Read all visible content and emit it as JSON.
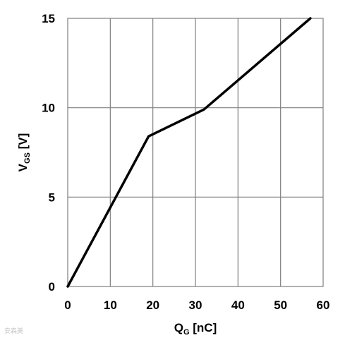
{
  "chart_data": {
    "type": "line",
    "xlabel": {
      "main": "Q",
      "sub": "G",
      "unit": " [nC]"
    },
    "ylabel": {
      "main": "V",
      "sub": "GS",
      "unit": " [V]"
    },
    "xlim": [
      0,
      60
    ],
    "ylim": [
      0,
      15
    ],
    "xticks": [
      0,
      10,
      20,
      30,
      40,
      50,
      60
    ],
    "yticks": [
      0,
      5,
      10,
      15
    ],
    "x_tick_labels": [
      "0",
      "10",
      "20",
      "30",
      "40",
      "50",
      "60"
    ],
    "y_tick_labels": [
      "0",
      "5",
      "10",
      "15"
    ],
    "grid": true,
    "series": [
      {
        "x": [
          0,
          19,
          32,
          57
        ],
        "y": [
          0,
          8.4,
          9.9,
          15
        ],
        "color": "#000000"
      }
    ]
  },
  "watermark": "安森美"
}
